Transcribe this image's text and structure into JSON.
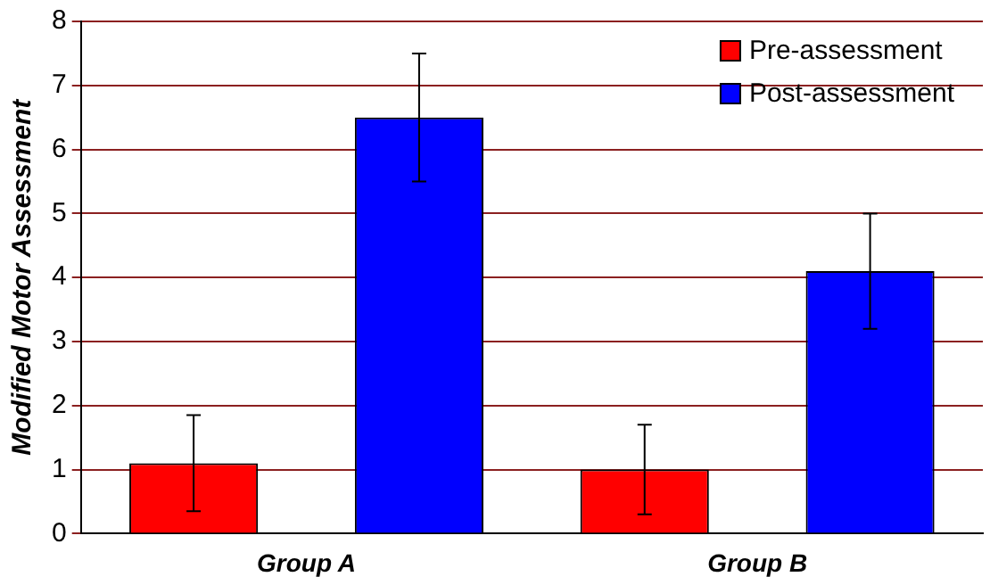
{
  "chart_data": {
    "type": "bar",
    "ylabel": "Modified Motor Assessment",
    "categories": [
      "Group A",
      "Group B"
    ],
    "series": [
      {
        "name": "Pre-assessment",
        "color": "#ff0000",
        "values": [
          1.1,
          1.0
        ],
        "errors": [
          0.75,
          0.7
        ]
      },
      {
        "name": "Post-assessment",
        "color": "#0000ff",
        "values": [
          6.5,
          4.1
        ],
        "errors": [
          1.0,
          0.9
        ]
      }
    ],
    "ylim": [
      0,
      8
    ],
    "yticks": [
      0,
      1,
      2,
      3,
      4,
      5,
      6,
      7,
      8
    ],
    "grid": "y",
    "legend": "top right"
  }
}
